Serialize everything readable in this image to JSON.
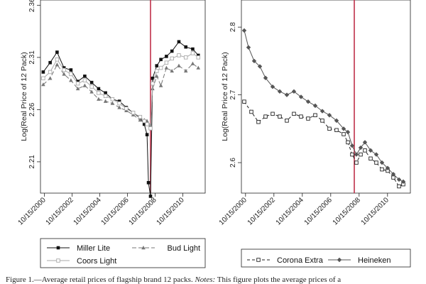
{
  "chart_data": [
    {
      "type": "line",
      "ylabel": "Log(Real Price of 12 Pack)",
      "ylim": [
        2.18,
        2.365
      ],
      "yticks": [
        "2.21",
        "2.26",
        "2.31",
        "2.36"
      ],
      "xlim": [
        2000.5,
        2012.4
      ],
      "xticks": [
        "10/15/2000",
        "10/15/2002",
        "10/15/2004",
        "10/15/2006",
        "10/15/2008",
        "10/15/2010"
      ],
      "event_line_x": 2008.45,
      "event_line_color": "#c0304a",
      "series": [
        {
          "name": "Miller Lite",
          "color": "#111111",
          "marker": "square-filled",
          "dash": "none",
          "x": [
            2000.7,
            2001.2,
            2001.7,
            2002.2,
            2002.7,
            2003.2,
            2003.7,
            2004.2,
            2004.7,
            2005.2,
            2005.7,
            2006.2,
            2006.7,
            2007.2,
            2007.7,
            2008.0,
            2008.2,
            2008.3,
            2008.45,
            2008.6,
            2008.9,
            2009.2,
            2009.6,
            2010.0,
            2010.5,
            2011.0,
            2011.5,
            2011.9
          ],
          "values": [
            2.296,
            2.305,
            2.315,
            2.3,
            2.298,
            2.287,
            2.292,
            2.286,
            2.28,
            2.276,
            2.27,
            2.268,
            2.262,
            2.257,
            2.252,
            2.246,
            2.236,
            2.19,
            2.177,
            2.29,
            2.302,
            2.308,
            2.311,
            2.316,
            2.325,
            2.32,
            2.318,
            2.312
          ]
        },
        {
          "name": "Bud Light",
          "color": "#777777",
          "marker": "triangle",
          "dash": "6,3",
          "x": [
            2000.7,
            2001.2,
            2001.7,
            2002.2,
            2002.7,
            2003.2,
            2003.7,
            2004.2,
            2004.7,
            2005.2,
            2005.7,
            2006.2,
            2006.7,
            2007.2,
            2007.7,
            2008.0,
            2008.2,
            2008.45,
            2008.6,
            2008.9,
            2009.2,
            2009.6,
            2010.0,
            2010.5,
            2011.0,
            2011.5,
            2011.9
          ],
          "values": [
            2.284,
            2.29,
            2.303,
            2.294,
            2.288,
            2.28,
            2.283,
            2.277,
            2.27,
            2.268,
            2.266,
            2.262,
            2.259,
            2.255,
            2.25,
            2.25,
            2.249,
            2.245,
            2.28,
            2.292,
            2.283,
            2.3,
            2.297,
            2.302,
            2.297,
            2.304,
            2.3
          ]
        },
        {
          "name": "Coors Light",
          "color": "#aaaaaa",
          "marker": "square-open",
          "dash": "none",
          "x": [
            2000.7,
            2001.2,
            2001.7,
            2002.2,
            2002.7,
            2003.2,
            2003.7,
            2004.2,
            2004.7,
            2005.2,
            2005.7,
            2006.2,
            2006.7,
            2007.2,
            2007.7,
            2008.0,
            2008.2,
            2008.45,
            2008.6,
            2008.9,
            2009.2,
            2009.6,
            2010.0,
            2010.5,
            2011.0,
            2011.5,
            2011.9
          ],
          "values": [
            2.29,
            2.296,
            2.308,
            2.298,
            2.294,
            2.285,
            2.288,
            2.282,
            2.276,
            2.273,
            2.27,
            2.266,
            2.261,
            2.257,
            2.253,
            2.249,
            2.246,
            2.242,
            2.285,
            2.297,
            2.3,
            2.305,
            2.309,
            2.312,
            2.31,
            2.314,
            2.31
          ]
        }
      ]
    },
    {
      "type": "line",
      "ylabel": "Log(Real Price of 12 Pack)",
      "ylim": [
        2.555,
        2.84
      ],
      "yticks": [
        "2.6",
        "2.7",
        "2.8"
      ],
      "xlim": [
        2000.5,
        2012.4
      ],
      "xticks": [
        "10/15/2000",
        "10/15/2002",
        "10/15/2004",
        "10/15/2006",
        "10/15/2008",
        "10/15/2010"
      ],
      "event_line_x": 2008.45,
      "event_line_color": "#c0304a",
      "series": [
        {
          "name": "Corona Extra",
          "color": "#222222",
          "marker": "square-open",
          "dash": "4,3",
          "x": [
            2000.7,
            2001.2,
            2001.7,
            2002.2,
            2002.7,
            2003.2,
            2003.7,
            2004.2,
            2004.7,
            2005.2,
            2005.7,
            2006.2,
            2006.7,
            2007.2,
            2007.7,
            2008.0,
            2008.3,
            2008.6,
            2008.9,
            2009.2,
            2009.6,
            2010.0,
            2010.4,
            2010.8,
            2011.2,
            2011.6,
            2011.9
          ],
          "values": [
            2.69,
            2.675,
            2.66,
            2.668,
            2.672,
            2.668,
            2.662,
            2.672,
            2.668,
            2.665,
            2.67,
            2.662,
            2.65,
            2.648,
            2.642,
            2.63,
            2.612,
            2.6,
            2.612,
            2.618,
            2.606,
            2.6,
            2.59,
            2.588,
            2.578,
            2.565,
            2.568
          ]
        },
        {
          "name": "Heineken",
          "color": "#555555",
          "marker": "diamond-filled",
          "dash": "none",
          "x": [
            2000.7,
            2001.0,
            2001.4,
            2001.8,
            2002.2,
            2002.7,
            2003.2,
            2003.7,
            2004.2,
            2004.7,
            2005.2,
            2005.7,
            2006.2,
            2006.7,
            2007.2,
            2007.7,
            2008.0,
            2008.3,
            2008.6,
            2008.9,
            2009.2,
            2009.6,
            2010.0,
            2010.4,
            2010.8,
            2011.2,
            2011.6,
            2011.9
          ],
          "values": [
            2.795,
            2.77,
            2.75,
            2.742,
            2.725,
            2.712,
            2.705,
            2.7,
            2.705,
            2.697,
            2.69,
            2.684,
            2.676,
            2.67,
            2.662,
            2.65,
            2.645,
            2.625,
            2.612,
            2.622,
            2.63,
            2.618,
            2.612,
            2.6,
            2.592,
            2.583,
            2.575,
            2.572
          ]
        }
      ]
    }
  ],
  "caption": {
    "label": "Figure 1.—Average retail prices of flagship brand 12 packs.",
    "notes_label": "Notes:",
    "text": "This figure plots the average prices of a"
  }
}
